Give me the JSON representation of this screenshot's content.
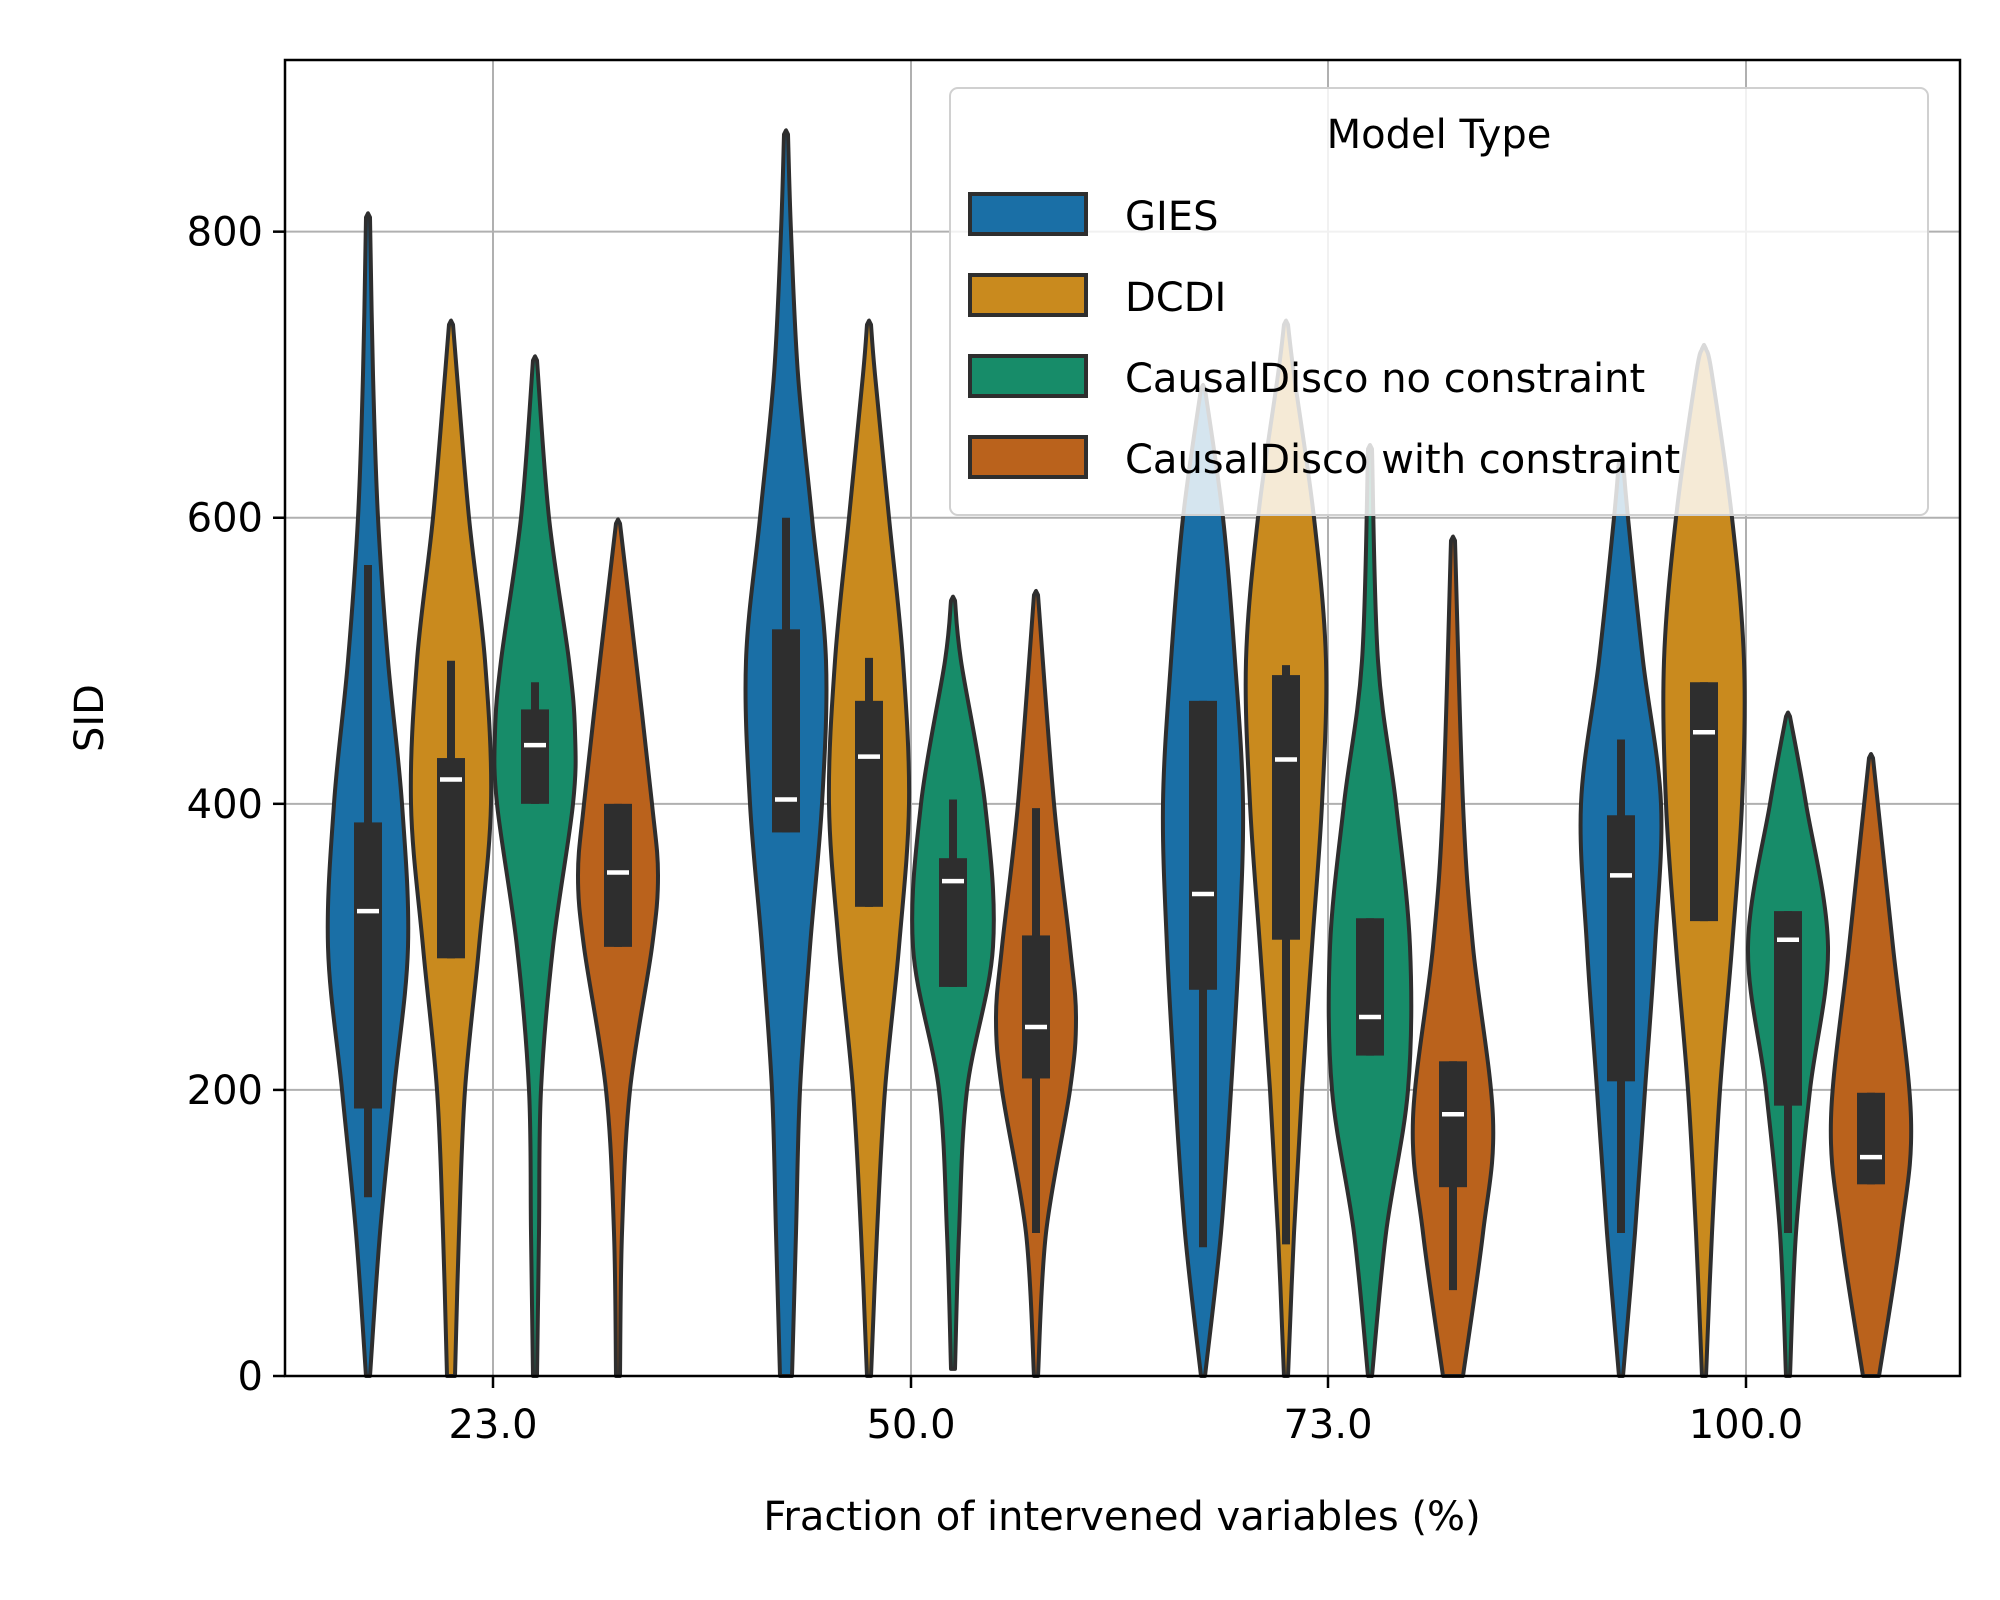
{
  "chart_data": {
    "type": "violin",
    "xlabel": "Fraction of intervened variables (%)",
    "ylabel": "SID",
    "ylim": [
      0,
      920
    ],
    "yticks": [
      "0",
      "200",
      "400",
      "600",
      "800"
    ],
    "ytick_values": [
      0,
      200,
      400,
      600,
      800
    ],
    "categories": [
      "23.0",
      "50.0",
      "73.0",
      "100.0"
    ],
    "grid": true,
    "legend": {
      "title": "Model Type",
      "position": "top-right"
    },
    "series": [
      {
        "name": "GIES",
        "color": "#1a6fa6",
        "violins": [
          {
            "min": 0,
            "max": 810,
            "q1": 187,
            "median": 325,
            "q3": 387,
            "wlo": 125,
            "whi": 567,
            "profile": [
              [
                0,
                2
              ],
              [
                100,
                12
              ],
              [
                200,
                26
              ],
              [
                300,
                40
              ],
              [
                400,
                34
              ],
              [
                500,
                20
              ],
              [
                600,
                10
              ],
              [
                700,
                5
              ],
              [
                810,
                2
              ]
            ]
          },
          {
            "min": 0,
            "max": 868,
            "q1": 380,
            "median": 403,
            "q3": 522,
            "wlo": 380,
            "whi": 600,
            "profile": [
              [
                0,
                6
              ],
              [
                100,
                10
              ],
              [
                200,
                14
              ],
              [
                300,
                24
              ],
              [
                400,
                36
              ],
              [
                500,
                40
              ],
              [
                600,
                26
              ],
              [
                700,
                12
              ],
              [
                800,
                5
              ],
              [
                868,
                2
              ]
            ]
          },
          {
            "min": 0,
            "max": 690,
            "q1": 270,
            "median": 337,
            "q3": 472,
            "wlo": 90,
            "whi": 472,
            "profile": [
              [
                0,
                2
              ],
              [
                100,
                18
              ],
              [
                200,
                28
              ],
              [
                300,
                36
              ],
              [
                400,
                40
              ],
              [
                500,
                32
              ],
              [
                600,
                20
              ],
              [
                690,
                2
              ]
            ]
          },
          {
            "min": 0,
            "max": 640,
            "q1": 206,
            "median": 350,
            "q3": 392,
            "wlo": 100,
            "whi": 445,
            "profile": [
              [
                0,
                2
              ],
              [
                100,
                14
              ],
              [
                200,
                24
              ],
              [
                300,
                34
              ],
              [
                400,
                40
              ],
              [
                500,
                22
              ],
              [
                600,
                7
              ],
              [
                640,
                2
              ]
            ]
          }
        ]
      },
      {
        "name": "DCDI",
        "color": "#c98a1e",
        "violins": [
          {
            "min": 0,
            "max": 735,
            "q1": 292,
            "median": 417,
            "q3": 432,
            "wlo": 292,
            "whi": 500,
            "profile": [
              [
                0,
                4
              ],
              [
                100,
                8
              ],
              [
                200,
                14
              ],
              [
                300,
                28
              ],
              [
                400,
                40
              ],
              [
                500,
                34
              ],
              [
                600,
                18
              ],
              [
                700,
                6
              ],
              [
                735,
                2
              ]
            ]
          },
          {
            "min": 0,
            "max": 735,
            "q1": 328,
            "median": 433,
            "q3": 472,
            "wlo": 328,
            "whi": 502,
            "profile": [
              [
                0,
                2
              ],
              [
                100,
                8
              ],
              [
                200,
                16
              ],
              [
                300,
                30
              ],
              [
                400,
                40
              ],
              [
                500,
                34
              ],
              [
                600,
                20
              ],
              [
                700,
                6
              ],
              [
                735,
                2
              ]
            ]
          },
          {
            "min": 0,
            "max": 735,
            "q1": 305,
            "median": 431,
            "q3": 490,
            "wlo": 92,
            "whi": 497,
            "profile": [
              [
                0,
                2
              ],
              [
                100,
                8
              ],
              [
                200,
                16
              ],
              [
                300,
                26
              ],
              [
                400,
                36
              ],
              [
                500,
                40
              ],
              [
                600,
                28
              ],
              [
                700,
                8
              ],
              [
                735,
                2
              ]
            ]
          },
          {
            "min": 0,
            "max": 718,
            "q1": 318,
            "median": 450,
            "q3": 485,
            "wlo": 318,
            "whi": 485,
            "profile": [
              [
                0,
                2
              ],
              [
                100,
                8
              ],
              [
                200,
                16
              ],
              [
                300,
                28
              ],
              [
                400,
                38
              ],
              [
                500,
                40
              ],
              [
                600,
                28
              ],
              [
                700,
                8
              ],
              [
                718,
                2
              ]
            ]
          }
        ]
      },
      {
        "name": "CausalDisco no constraint",
        "color": "#178c69",
        "violins": [
          {
            "min": 0,
            "max": 710,
            "q1": 400,
            "median": 441,
            "q3": 466,
            "wlo": 400,
            "whi": 485,
            "profile": [
              [
                0,
                2
              ],
              [
                100,
                4
              ],
              [
                200,
                6
              ],
              [
                300,
                18
              ],
              [
                400,
                38
              ],
              [
                450,
                40
              ],
              [
                500,
                34
              ],
              [
                600,
                14
              ],
              [
                710,
                2
              ]
            ]
          },
          {
            "min": 5,
            "max": 542,
            "q1": 272,
            "median": 346,
            "q3": 362,
            "wlo": 272,
            "whi": 403,
            "profile": [
              [
                5,
                2
              ],
              [
                100,
                6
              ],
              [
                200,
                14
              ],
              [
                300,
                40
              ],
              [
                400,
                32
              ],
              [
                500,
                8
              ],
              [
                542,
                2
              ]
            ]
          },
          {
            "min": 0,
            "max": 648,
            "q1": 224,
            "median": 251,
            "q3": 320,
            "wlo": 224,
            "whi": 320,
            "profile": [
              [
                0,
                2
              ],
              [
                100,
                16
              ],
              [
                200,
                38
              ],
              [
                300,
                40
              ],
              [
                400,
                26
              ],
              [
                500,
                8
              ],
              [
                648,
                2
              ]
            ]
          },
          {
            "min": 0,
            "max": 461,
            "q1": 189,
            "median": 305,
            "q3": 325,
            "wlo": 100,
            "whi": 325,
            "profile": [
              [
                0,
                2
              ],
              [
                100,
                8
              ],
              [
                200,
                22
              ],
              [
                300,
                40
              ],
              [
                400,
                18
              ],
              [
                461,
                2
              ]
            ]
          }
        ]
      },
      {
        "name": "CausalDisco with constraint",
        "color": "#ba621c",
        "violins": [
          {
            "min": 0,
            "max": 596,
            "q1": 300,
            "median": 352,
            "q3": 400,
            "wlo": 300,
            "whi": 400,
            "profile": [
              [
                0,
                2
              ],
              [
                100,
                4
              ],
              [
                200,
                12
              ],
              [
                300,
                34
              ],
              [
                350,
                40
              ],
              [
                400,
                34
              ],
              [
                500,
                18
              ],
              [
                596,
                2
              ]
            ]
          },
          {
            "min": 0,
            "max": 546,
            "q1": 208,
            "median": 244,
            "q3": 308,
            "wlo": 100,
            "whi": 397,
            "profile": [
              [
                0,
                2
              ],
              [
                100,
                10
              ],
              [
                200,
                34
              ],
              [
                250,
                40
              ],
              [
                300,
                34
              ],
              [
                400,
                18
              ],
              [
                546,
                2
              ]
            ]
          },
          {
            "min": 0,
            "max": 584,
            "q1": 132,
            "median": 183,
            "q3": 220,
            "wlo": 60,
            "whi": 220,
            "profile": [
              [
                0,
                10
              ],
              [
                100,
                30
              ],
              [
                180,
                40
              ],
              [
                300,
                20
              ],
              [
                400,
                10
              ],
              [
                584,
                2
              ]
            ]
          },
          {
            "min": 0,
            "max": 432,
            "q1": 134,
            "median": 153,
            "q3": 198,
            "wlo": 134,
            "whi": 198,
            "profile": [
              [
                0,
                8
              ],
              [
                100,
                30
              ],
              [
                180,
                40
              ],
              [
                300,
                22
              ],
              [
                432,
                2
              ]
            ]
          }
        ]
      }
    ]
  },
  "style": {
    "outline_color": "#2e2e2e",
    "box_color": "#2e2e2e",
    "median_color": "#ffffff",
    "grid_color": "#b0b0b0"
  }
}
